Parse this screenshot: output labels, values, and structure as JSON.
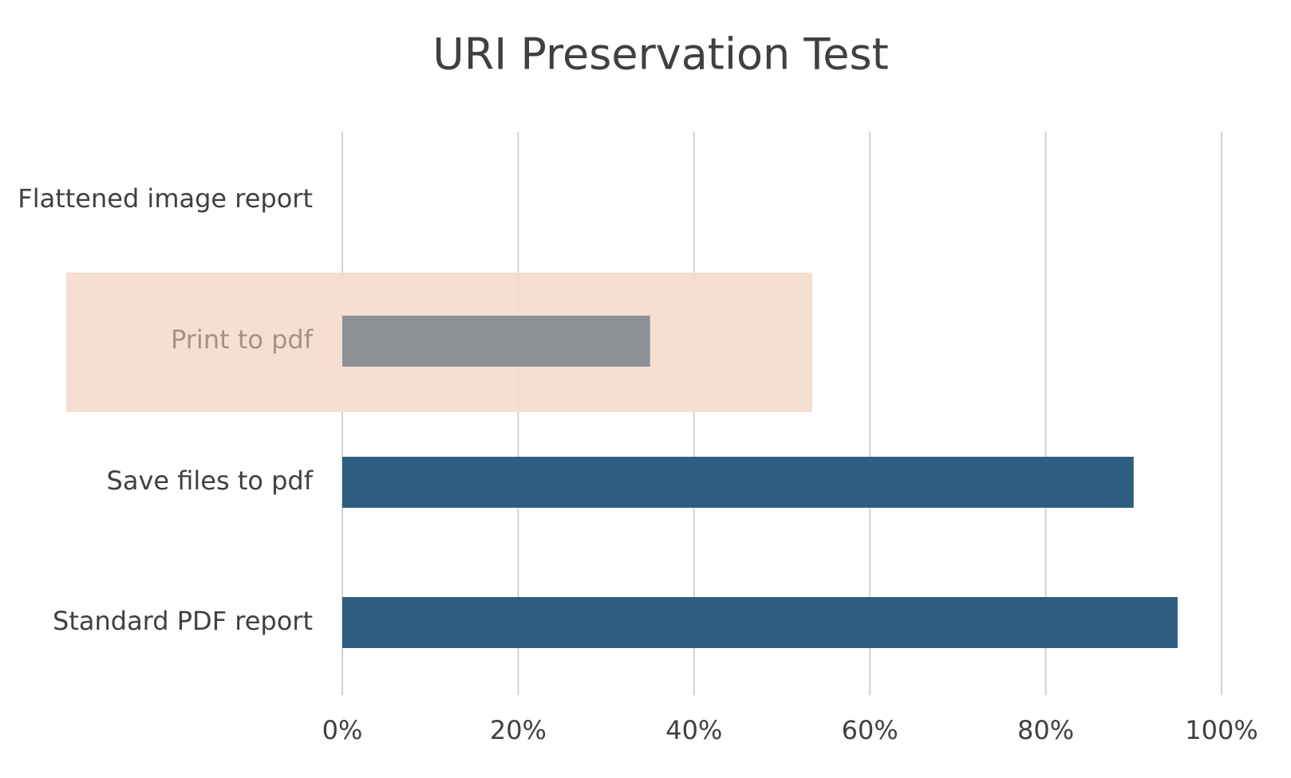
{
  "chart_data": {
    "type": "hbar",
    "title": "URI Preservation Test",
    "categories": [
      "Flattened image report",
      "Print to pdf",
      "Save files to pdf",
      "Standard PDF report"
    ],
    "values": [
      0,
      35,
      90,
      95
    ],
    "colors": [
      "#2e5f80",
      "#8c9196",
      "#2e5f80",
      "#2e5f80"
    ],
    "xlim": [
      0,
      100
    ],
    "xticks": [
      {
        "value": 0,
        "label": "0%"
      },
      {
        "value": 20,
        "label": "20%"
      },
      {
        "value": 40,
        "label": "40%"
      },
      {
        "value": 60,
        "label": "60%"
      },
      {
        "value": 80,
        "label": "80%"
      },
      {
        "value": 100,
        "label": "100%"
      }
    ],
    "grid": true
  }
}
